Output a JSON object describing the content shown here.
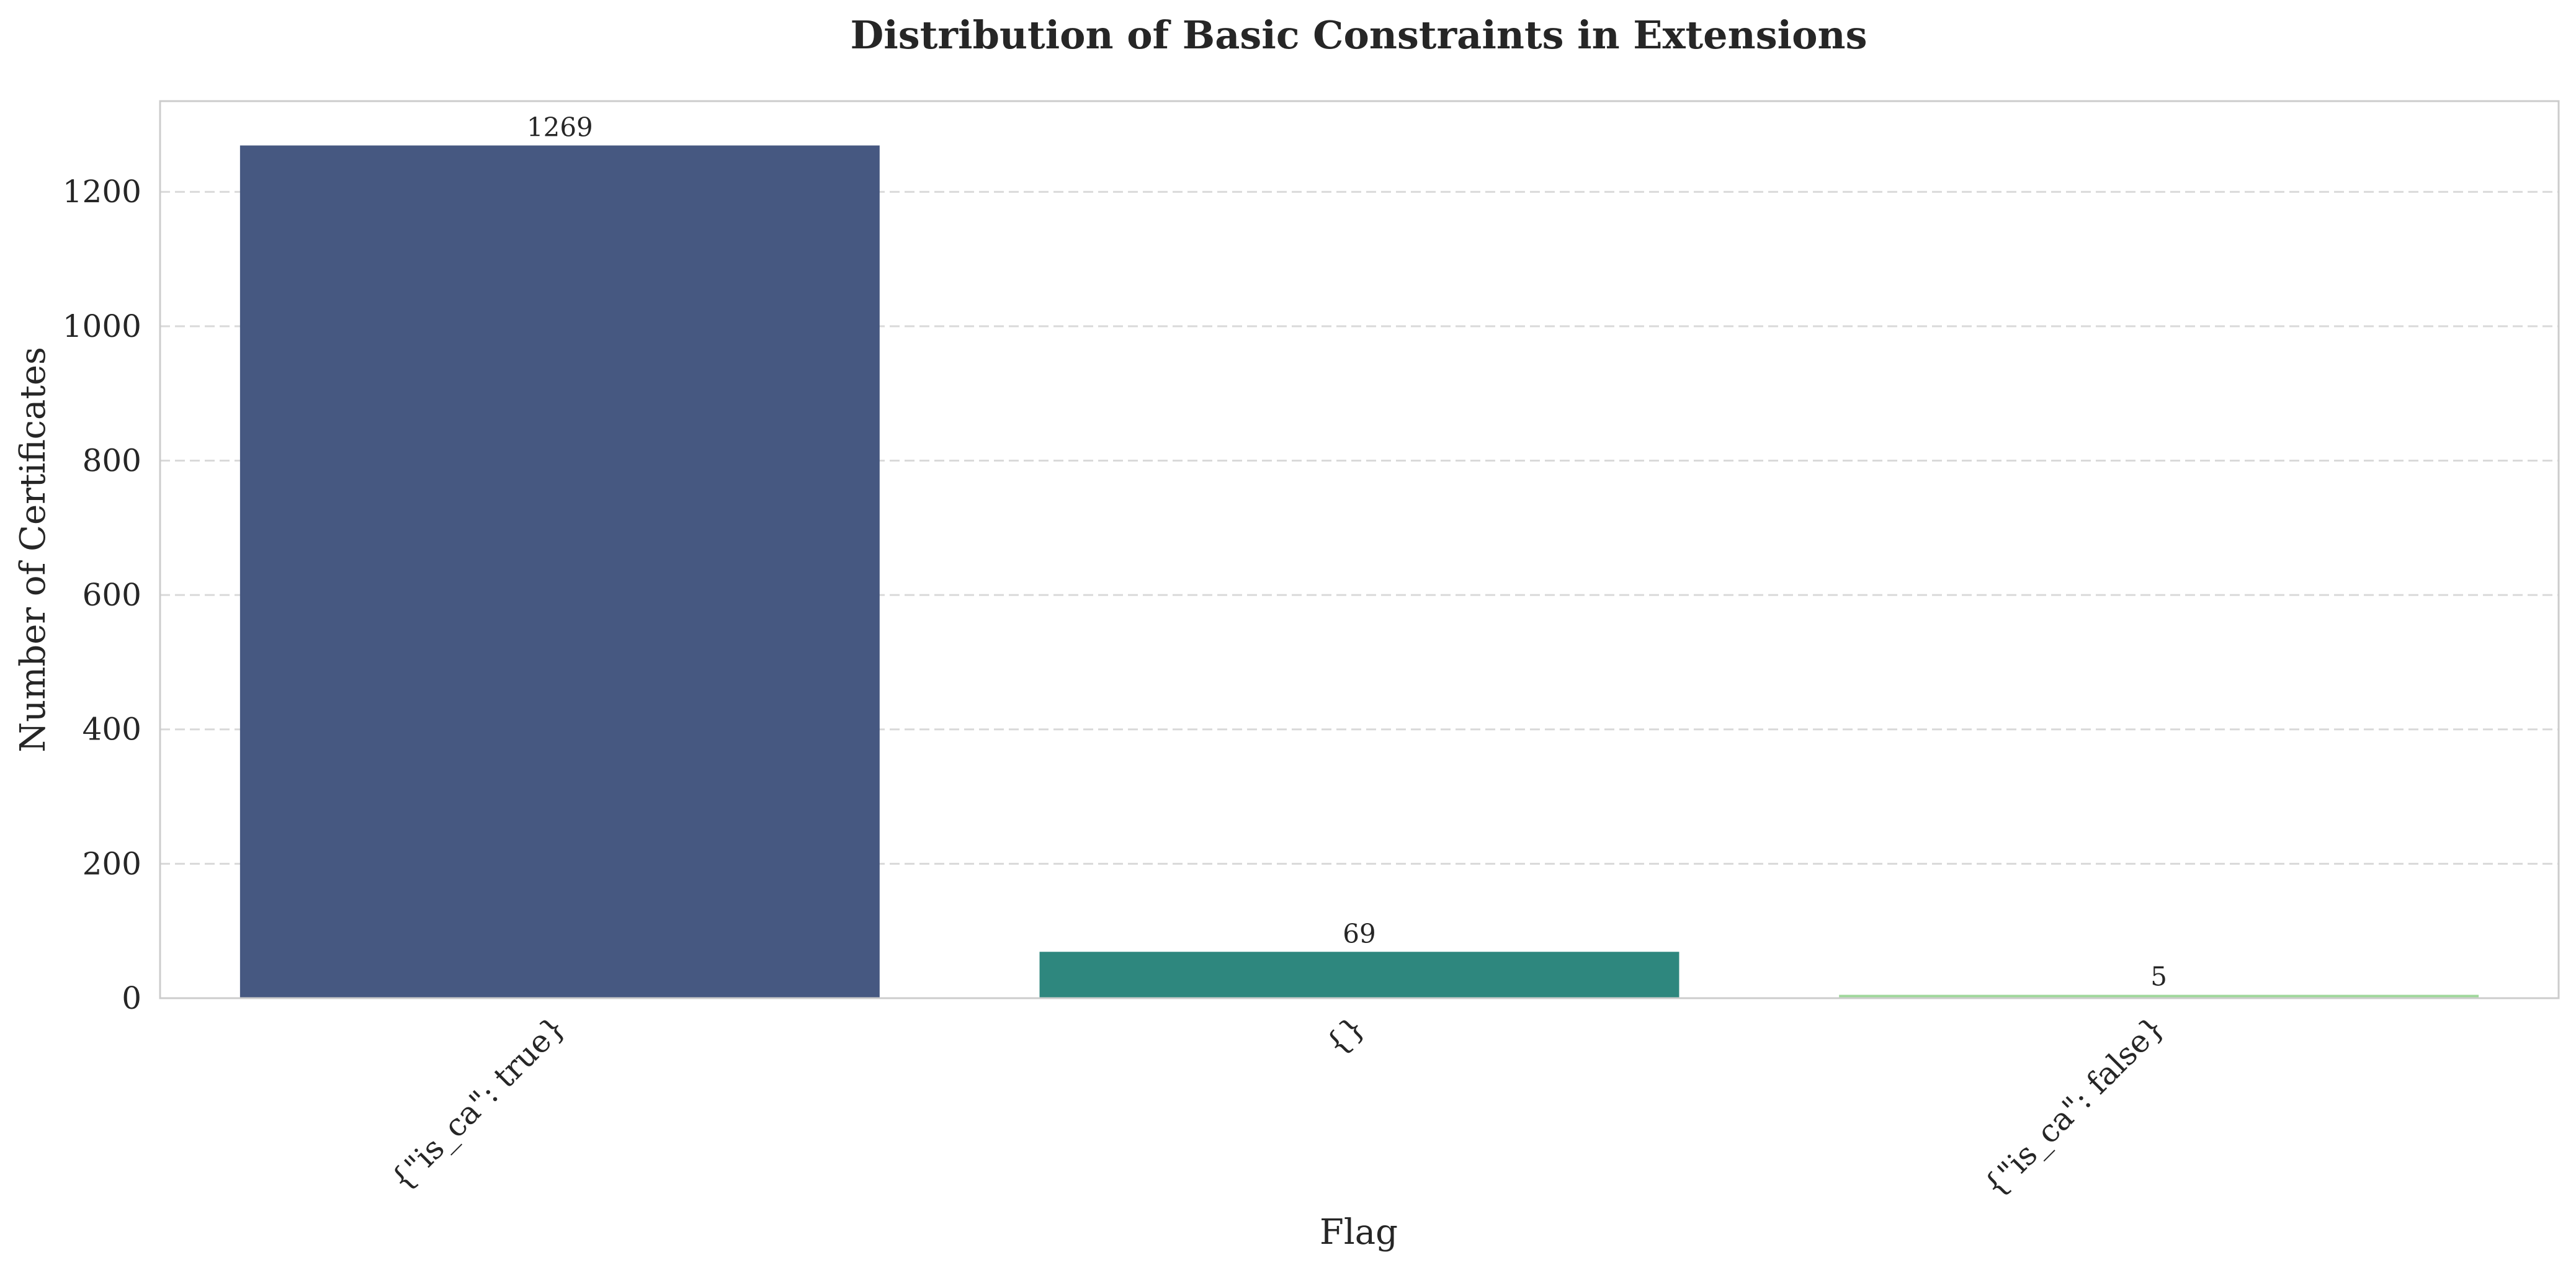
{
  "chart_data": {
    "type": "bar",
    "title": "Distribution of Basic Constraints in Extensions",
    "xlabel": "Flag",
    "ylabel": "Number of Certificates",
    "categories": [
      "{\"is_ca\": true}",
      "{}",
      "{\"is_ca\": false}"
    ],
    "values": [
      1269,
      69,
      5
    ],
    "colors": [
      "#465881",
      "#2e877e",
      "#9fd89b"
    ],
    "ylim": [
      0,
      1335
    ],
    "yticks": [
      0,
      200,
      400,
      600,
      800,
      1000,
      1200
    ],
    "grid": true,
    "grid_axis": "y",
    "x_tick_rotation": 45,
    "data_labels": true
  }
}
